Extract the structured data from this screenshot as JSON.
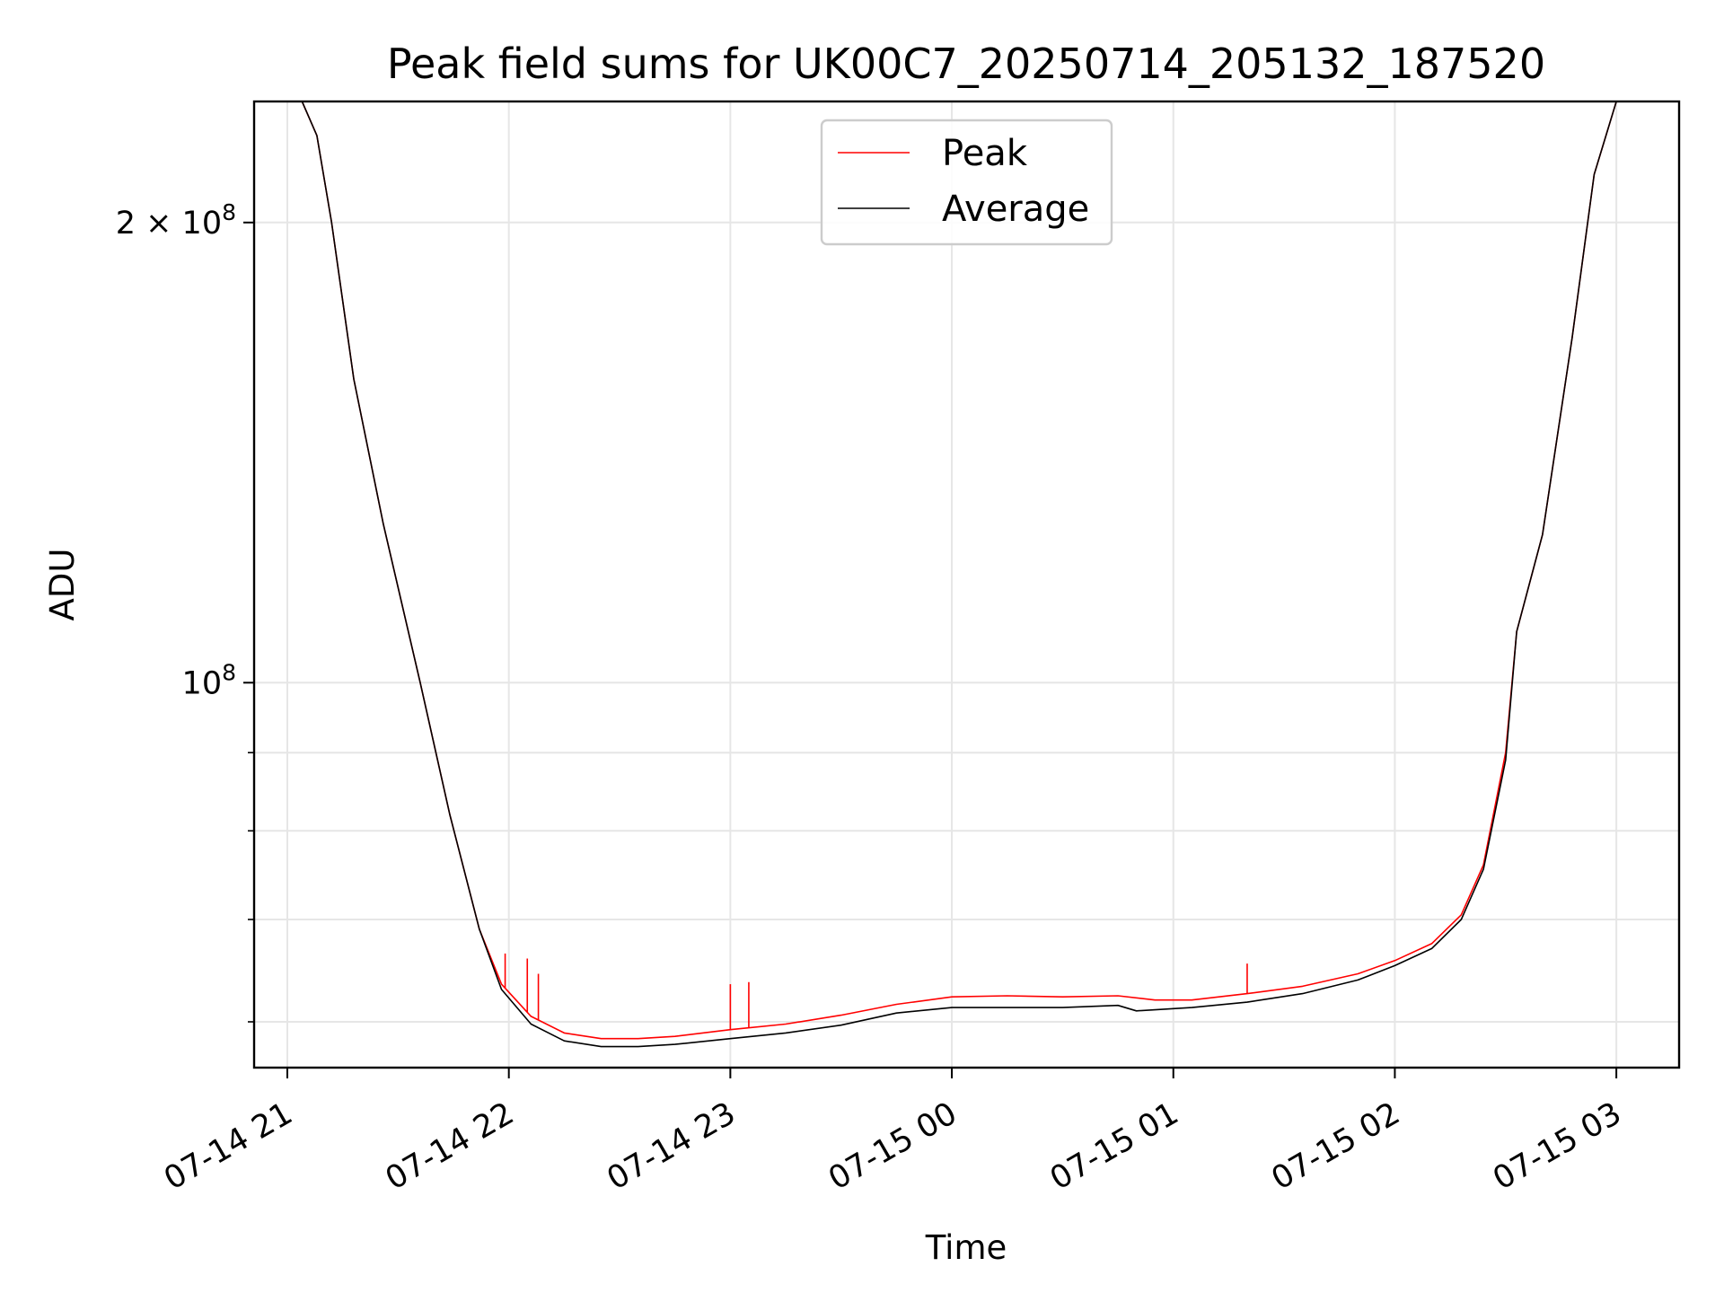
{
  "chart_data": {
    "type": "line",
    "title": "Peak field sums for UK00C7_20250714_205132_187520",
    "xlabel": "Time",
    "ylabel": "ADU",
    "y_scale": "log",
    "grid": true,
    "legend_position": "top-center",
    "xlim": [
      "2025-07-14 20:51",
      "2025-07-15 03:17"
    ],
    "ylim": [
      56000000,
      240000000
    ],
    "x_ticks": [
      {
        "value": "2025-07-14 21:00",
        "label": "07-14 21"
      },
      {
        "value": "2025-07-14 22:00",
        "label": "07-14 22"
      },
      {
        "value": "2025-07-14 23:00",
        "label": "07-14 23"
      },
      {
        "value": "2025-07-15 00:00",
        "label": "07-15 00"
      },
      {
        "value": "2025-07-15 01:00",
        "label": "07-15 01"
      },
      {
        "value": "2025-07-15 02:00",
        "label": "07-15 02"
      },
      {
        "value": "2025-07-15 03:00",
        "label": "07-15 03"
      }
    ],
    "y_ticks_major": [
      {
        "value": 100000000,
        "base": "10",
        "exp": "8",
        "coef": ""
      },
      {
        "value": 200000000,
        "base": "10",
        "exp": "8",
        "coef": "2 × "
      }
    ],
    "y_ticks_minor": [
      60000000,
      70000000,
      80000000,
      90000000
    ],
    "series": [
      {
        "name": "Peak",
        "color": "#ff0000",
        "points": [
          [
            "2025-07-14 20:51",
            240000000
          ],
          [
            "2025-07-14 21:04",
            240000000
          ],
          [
            "2025-07-14 21:08",
            228000000
          ],
          [
            "2025-07-14 21:12",
            200000000
          ],
          [
            "2025-07-14 21:18",
            158000000
          ],
          [
            "2025-07-14 21:26",
            127000000
          ],
          [
            "2025-07-14 21:36",
            100000000
          ],
          [
            "2025-07-14 21:44",
            82000000
          ],
          [
            "2025-07-14 21:52",
            69000000
          ],
          [
            "2025-07-14 21:58",
            63500000
          ],
          [
            "2025-07-14 22:06",
            60500000
          ],
          [
            "2025-07-14 22:15",
            59000000
          ],
          [
            "2025-07-14 22:25",
            58500000
          ],
          [
            "2025-07-14 22:35",
            58500000
          ],
          [
            "2025-07-14 22:45",
            58700000
          ],
          [
            "2025-07-14 23:00",
            59300000
          ],
          [
            "2025-07-14 23:15",
            59800000
          ],
          [
            "2025-07-14 23:30",
            60600000
          ],
          [
            "2025-07-14 23:45",
            61600000
          ],
          [
            "2025-07-15 00:00",
            62300000
          ],
          [
            "2025-07-15 00:15",
            62400000
          ],
          [
            "2025-07-15 00:30",
            62300000
          ],
          [
            "2025-07-15 00:45",
            62400000
          ],
          [
            "2025-07-15 00:55",
            62000000
          ],
          [
            "2025-07-15 01:05",
            62000000
          ],
          [
            "2025-07-15 01:20",
            62600000
          ],
          [
            "2025-07-15 01:35",
            63300000
          ],
          [
            "2025-07-15 01:50",
            64500000
          ],
          [
            "2025-07-15 02:00",
            65800000
          ],
          [
            "2025-07-15 02:10",
            67500000
          ],
          [
            "2025-07-15 02:18",
            70500000
          ],
          [
            "2025-07-15 02:24",
            76000000
          ],
          [
            "2025-07-15 02:30",
            90000000
          ],
          [
            "2025-07-15 02:33",
            108000000
          ],
          [
            "2025-07-15 02:40",
            125000000
          ],
          [
            "2025-07-15 02:48",
            168000000
          ],
          [
            "2025-07-15 02:54",
            215000000
          ],
          [
            "2025-07-15 03:00",
            240000000
          ],
          [
            "2025-07-15 03:17",
            240000000
          ]
        ],
        "spikes": [
          [
            "2025-07-14 21:59",
            66500000
          ],
          [
            "2025-07-14 22:05",
            66000000
          ],
          [
            "2025-07-14 22:08",
            64500000
          ],
          [
            "2025-07-14 23:00",
            63500000
          ],
          [
            "2025-07-14 23:05",
            63700000
          ],
          [
            "2025-07-15 01:20",
            65500000
          ]
        ]
      },
      {
        "name": "Average",
        "color": "#000000",
        "points": [
          [
            "2025-07-14 20:51",
            240000000
          ],
          [
            "2025-07-14 21:04",
            240000000
          ],
          [
            "2025-07-14 21:08",
            228000000
          ],
          [
            "2025-07-14 21:12",
            200000000
          ],
          [
            "2025-07-14 21:18",
            158000000
          ],
          [
            "2025-07-14 21:26",
            127000000
          ],
          [
            "2025-07-14 21:36",
            100000000
          ],
          [
            "2025-07-14 21:44",
            82000000
          ],
          [
            "2025-07-14 21:52",
            69000000
          ],
          [
            "2025-07-14 21:58",
            63000000
          ],
          [
            "2025-07-14 22:06",
            59800000
          ],
          [
            "2025-07-14 22:15",
            58300000
          ],
          [
            "2025-07-14 22:25",
            57800000
          ],
          [
            "2025-07-14 22:35",
            57800000
          ],
          [
            "2025-07-14 22:45",
            58000000
          ],
          [
            "2025-07-14 23:00",
            58500000
          ],
          [
            "2025-07-14 23:15",
            59000000
          ],
          [
            "2025-07-14 23:30",
            59700000
          ],
          [
            "2025-07-14 23:45",
            60800000
          ],
          [
            "2025-07-15 00:00",
            61300000
          ],
          [
            "2025-07-15 00:15",
            61300000
          ],
          [
            "2025-07-15 00:30",
            61300000
          ],
          [
            "2025-07-15 00:45",
            61500000
          ],
          [
            "2025-07-15 00:50",
            61000000
          ],
          [
            "2025-07-15 01:05",
            61300000
          ],
          [
            "2025-07-15 01:20",
            61800000
          ],
          [
            "2025-07-15 01:35",
            62600000
          ],
          [
            "2025-07-15 01:50",
            63900000
          ],
          [
            "2025-07-15 02:00",
            65300000
          ],
          [
            "2025-07-15 02:10",
            67000000
          ],
          [
            "2025-07-15 02:18",
            70000000
          ],
          [
            "2025-07-15 02:24",
            75500000
          ],
          [
            "2025-07-15 02:30",
            89000000
          ],
          [
            "2025-07-15 02:33",
            108000000
          ],
          [
            "2025-07-15 02:40",
            125000000
          ],
          [
            "2025-07-15 02:48",
            168000000
          ],
          [
            "2025-07-15 02:54",
            215000000
          ],
          [
            "2025-07-15 03:00",
            240000000
          ],
          [
            "2025-07-15 03:17",
            240000000
          ]
        ]
      }
    ]
  }
}
